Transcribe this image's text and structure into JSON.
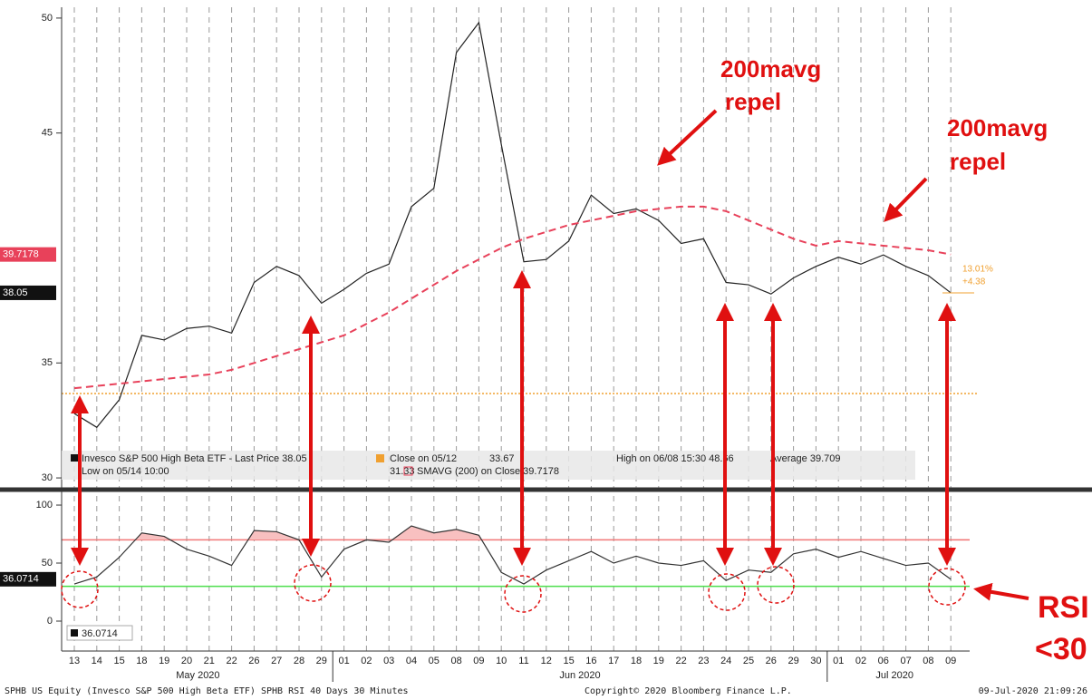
{
  "chart_data": [
    {
      "type": "line",
      "categories": [
        "13",
        "14",
        "15",
        "18",
        "19",
        "20",
        "21",
        "22",
        "26",
        "27",
        "28",
        "29",
        "01",
        "02",
        "03",
        "04",
        "05",
        "08",
        "09",
        "10",
        "11",
        "12",
        "15",
        "16",
        "17",
        "18",
        "19",
        "22",
        "23",
        "24",
        "25",
        "26",
        "29",
        "30",
        "01",
        "02",
        "06",
        "07",
        "08",
        "09"
      ],
      "months": [
        {
          "label": "May 2020",
          "from": 0,
          "to": 11
        },
        {
          "label": "Jun 2020",
          "from": 12,
          "to": 33
        },
        {
          "label": "Jul 2020",
          "from": 34,
          "to": 39
        }
      ],
      "series": [
        {
          "name": "Invesco S&P 500 High Beta ETF - Last Price",
          "color": "#222222",
          "values": [
            32.8,
            32.2,
            33.4,
            36.2,
            36.0,
            36.5,
            36.6,
            36.3,
            38.5,
            39.2,
            38.8,
            37.6,
            38.2,
            38.9,
            39.3,
            41.8,
            42.6,
            48.5,
            49.8,
            44.5,
            39.4,
            39.5,
            40.3,
            42.3,
            41.5,
            41.7,
            41.2,
            40.2,
            40.4,
            38.5,
            38.4,
            38.0,
            38.7,
            39.2,
            39.6,
            39.3,
            39.7,
            39.2,
            38.8,
            38.05
          ]
        },
        {
          "name": "SMAVG (200) on Close",
          "color": "#e8415a",
          "dashed": true,
          "values": [
            33.9,
            34.0,
            34.1,
            34.2,
            34.3,
            34.4,
            34.5,
            34.7,
            35.0,
            35.3,
            35.6,
            35.9,
            36.2,
            36.7,
            37.2,
            37.8,
            38.4,
            39.0,
            39.5,
            40.0,
            40.4,
            40.7,
            41.0,
            41.2,
            41.4,
            41.6,
            41.7,
            41.8,
            41.8,
            41.6,
            41.2,
            40.8,
            40.4,
            40.1,
            40.3,
            40.2,
            40.1,
            40.0,
            39.9,
            39.7178
          ]
        }
      ],
      "ylim": [
        29.49,
        50.47
      ],
      "yticks": [
        30,
        35,
        45,
        50
      ],
      "last_price_label": "38.05",
      "last_price": 38.05,
      "sma_label": "39.7178",
      "sma_last": 39.7178,
      "change_pct": "13.01%",
      "change": "+4.38",
      "close_line": {
        "value": 33.67,
        "color": "#f0a030"
      },
      "legend": {
        "row1": [
          "Invesco S&P 500 High Beta ETF - Last Price 38.05",
          "Close on 05/12",
          "33.67",
          "High on 06/08 15:30 48.66",
          "Average 39.709"
        ],
        "row2": [
          "Low on 05/14 10:00",
          "31.33",
          "SMAVG (200) on Close 39.7178"
        ]
      },
      "annotations": [
        "200mavg",
        "repel",
        "200mavg",
        "repel"
      ]
    },
    {
      "type": "line",
      "categories": [
        "13",
        "14",
        "15",
        "18",
        "19",
        "20",
        "21",
        "22",
        "26",
        "27",
        "28",
        "29",
        "01",
        "02",
        "03",
        "04",
        "05",
        "08",
        "09",
        "10",
        "11",
        "12",
        "15",
        "16",
        "17",
        "18",
        "19",
        "22",
        "23",
        "24",
        "25",
        "26",
        "29",
        "30",
        "01",
        "02",
        "06",
        "07",
        "08",
        "09"
      ],
      "series": [
        {
          "name": "RSI",
          "color": "#333333",
          "values": [
            32,
            38,
            55,
            76,
            73,
            62,
            56,
            48,
            78,
            77,
            70,
            38,
            62,
            70,
            68,
            82,
            76,
            79,
            74,
            42,
            32,
            44,
            52,
            60,
            50,
            56,
            50,
            48,
            52,
            35,
            44,
            42,
            58,
            62,
            55,
            60,
            54,
            48,
            50,
            36.0714
          ]
        }
      ],
      "ylim": [
        -25.8,
        109.4
      ],
      "yticks": [
        0,
        50,
        100
      ],
      "levels": [
        {
          "value": 70,
          "color": "#f07070",
          "fill": "#f8c0c0"
        },
        {
          "value": 30,
          "color": "#44dd44",
          "fill": "#c0f0c0"
        }
      ],
      "last_label": "36.0714",
      "legend_label": "36.0714",
      "annotations": [
        "RSI",
        "<30"
      ]
    }
  ],
  "footer": {
    "left": "SPHB US Equity (Invesco S&P 500 High Beta ETF) SPHB RSI 40 Days 30 Minutes",
    "center": "Copyright© 2020 Bloomberg Finance L.P.",
    "right": "09-Jul-2020 21:09:26"
  }
}
